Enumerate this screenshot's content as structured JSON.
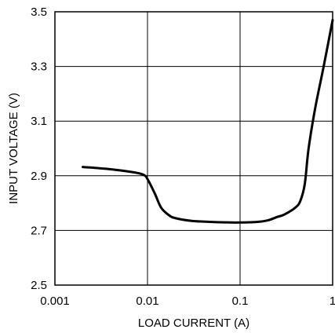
{
  "chart_data": {
    "type": "line",
    "title": "",
    "xlabel": "LOAD CURRENT (A)",
    "ylabel": "INPUT VOLTAGE (V)",
    "x_scale": "log",
    "xlim": [
      0.001,
      1
    ],
    "ylim": [
      2.5,
      3.5
    ],
    "x_ticks": [
      0.001,
      0.01,
      0.1,
      1
    ],
    "x_tick_labels": [
      "0.001",
      "0.01",
      "0.1",
      "1"
    ],
    "y_ticks": [
      2.5,
      2.7,
      2.9,
      3.1,
      3.3,
      3.5
    ],
    "y_tick_labels": [
      "2.5",
      "2.7",
      "2.9",
      "3.1",
      "3.3",
      "3.5"
    ],
    "grid": true,
    "legend": "none",
    "colors": {
      "line": "#000000",
      "grid": "#000000",
      "background": "#ffffff"
    },
    "series": [
      {
        "x": [
          0.002,
          0.004,
          0.007,
          0.009,
          0.01,
          0.012,
          0.014,
          0.017,
          0.02,
          0.03,
          0.05,
          0.08,
          0.1,
          0.15,
          0.2,
          0.25,
          0.3,
          0.4,
          0.45,
          0.5,
          0.55,
          0.65,
          0.8,
          1.0
        ],
        "y": [
          2.932,
          2.924,
          2.913,
          2.904,
          2.888,
          2.835,
          2.784,
          2.756,
          2.745,
          2.735,
          2.731,
          2.729,
          2.729,
          2.731,
          2.737,
          2.749,
          2.758,
          2.785,
          2.81,
          2.87,
          3.0,
          3.15,
          3.3,
          3.47
        ]
      }
    ]
  }
}
